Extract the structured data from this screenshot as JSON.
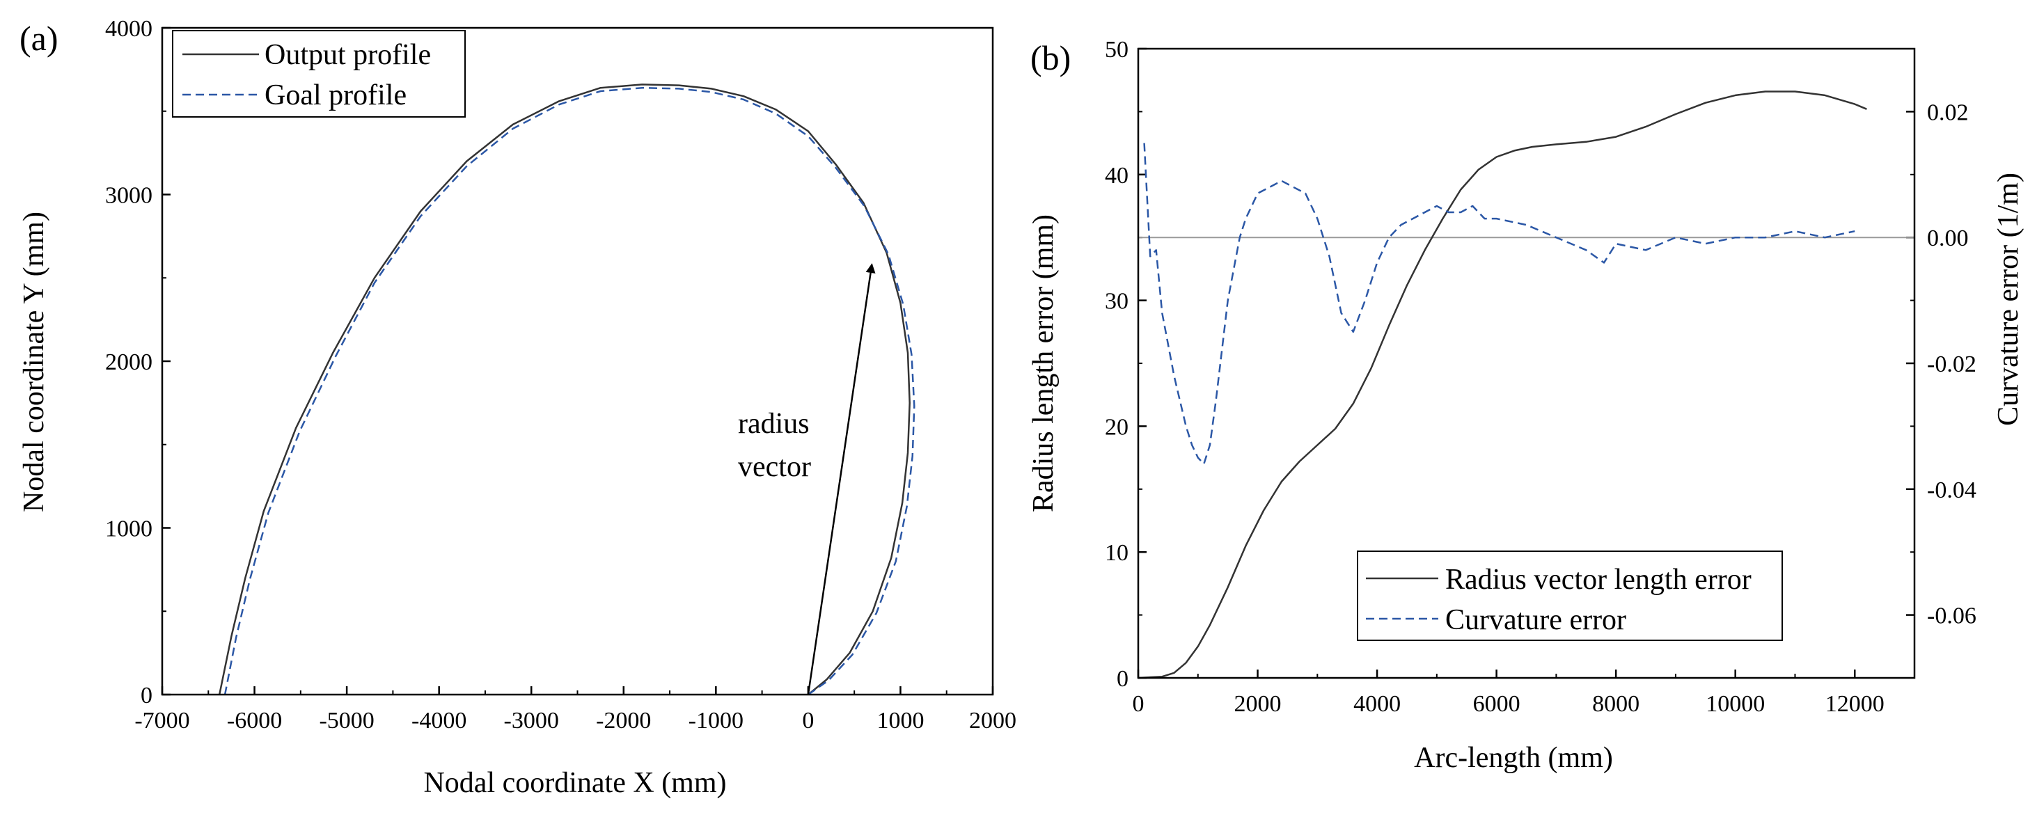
{
  "chart_data": [
    {
      "panel": "(a)",
      "type": "line",
      "xlabel": "Nodal coordinate  X (mm)",
      "ylabel": "Nodal coordinate  Y (mm)",
      "xlim": [
        -7000,
        2000
      ],
      "ylim": [
        0,
        4000
      ],
      "xticks": [
        "-7000",
        "-6000",
        "-5000",
        "-4000",
        "-3000",
        "-2000",
        "-1000",
        "0",
        "1000",
        "2000"
      ],
      "yticks": [
        "0",
        "1000",
        "2000",
        "3000",
        "4000"
      ],
      "legend_position": "top-left",
      "annotation": {
        "line1": "radius",
        "line2": "vector",
        "arrow_from": [
          0,
          0
        ],
        "arrow_to": [
          690,
          2580
        ]
      },
      "series": [
        {
          "name": "Output profile",
          "style": "solid",
          "color": "#333333",
          "x": [
            0,
            200,
            450,
            700,
            900,
            1020,
            1080,
            1100,
            1080,
            1000,
            850,
            600,
            300,
            0,
            -350,
            -700,
            -1050,
            -1400,
            -1800,
            -2250,
            -2700,
            -3200,
            -3700,
            -4200,
            -4700,
            -5150,
            -5550,
            -5900,
            -6100,
            -6250,
            -6380
          ],
          "y": [
            0,
            90,
            250,
            500,
            820,
            1150,
            1450,
            1750,
            2050,
            2350,
            2650,
            2950,
            3180,
            3380,
            3510,
            3590,
            3635,
            3655,
            3660,
            3640,
            3560,
            3420,
            3200,
            2900,
            2500,
            2050,
            1600,
            1100,
            700,
            350,
            0
          ]
        },
        {
          "name": "Goal profile",
          "style": "dashed",
          "color": "#2b57a6",
          "x": [
            0,
            220,
            480,
            740,
            950,
            1070,
            1130,
            1150,
            1120,
            1030,
            870,
            610,
            300,
            0,
            -350,
            -700,
            -1050,
            -1400,
            -1800,
            -2250,
            -2700,
            -3200,
            -3700,
            -4200,
            -4700,
            -5120,
            -5510,
            -5850,
            -6050,
            -6200,
            -6320
          ],
          "y": [
            0,
            85,
            240,
            490,
            800,
            1130,
            1430,
            1730,
            2040,
            2340,
            2640,
            2930,
            3160,
            3350,
            3485,
            3570,
            3615,
            3635,
            3640,
            3620,
            3540,
            3395,
            3170,
            2870,
            2470,
            2030,
            1580,
            1090,
            690,
            340,
            0
          ]
        }
      ]
    },
    {
      "panel": "(b)",
      "type": "line",
      "xlabel": "Arc-length (mm)",
      "ylabel": "Radius length error (mm)",
      "y2label": "Curvature error (1/m)",
      "xlim": [
        0,
        13000
      ],
      "ylim": [
        0,
        50
      ],
      "y2lim": [
        -0.07,
        0.03
      ],
      "xticks": [
        "0",
        "2000",
        "4000",
        "6000",
        "8000",
        "10000",
        "12000"
      ],
      "yticks": [
        "0",
        "10",
        "20",
        "30",
        "40",
        "50"
      ],
      "y2ticks": [
        "0.02",
        "0.00",
        "-0.02",
        "-0.04",
        "-0.06"
      ],
      "y2tick_values": [
        0.02,
        0.0,
        -0.02,
        -0.04,
        -0.06
      ],
      "legend_position": "bottom-center",
      "reference_line": {
        "axis": "y2",
        "value": 0.0
      },
      "series": [
        {
          "name": "Radius vector length error",
          "axis": "left",
          "style": "solid",
          "color": "#333333",
          "x": [
            0,
            400,
            600,
            800,
            1000,
            1200,
            1500,
            1800,
            2100,
            2400,
            2700,
            3000,
            3300,
            3600,
            3900,
            4200,
            4500,
            4800,
            5100,
            5400,
            5700,
            6000,
            6300,
            6600,
            7000,
            7500,
            8000,
            8500,
            9000,
            9500,
            10000,
            10500,
            11000,
            11500,
            12000,
            12200
          ],
          "y": [
            0,
            0.1,
            0.4,
            1.2,
            2.5,
            4.2,
            7.2,
            10.5,
            13.3,
            15.6,
            17.2,
            18.5,
            19.8,
            21.8,
            24.6,
            28.0,
            31.2,
            34.0,
            36.5,
            38.8,
            40.4,
            41.4,
            41.9,
            42.2,
            42.4,
            42.6,
            43.0,
            43.8,
            44.8,
            45.7,
            46.3,
            46.6,
            46.6,
            46.3,
            45.6,
            45.2
          ]
        },
        {
          "name": "Curvature error",
          "axis": "right",
          "style": "dashed",
          "color": "#2b57a6",
          "x": [
            100,
            200,
            300,
            400,
            500,
            600,
            700,
            800,
            900,
            1000,
            1100,
            1200,
            1300,
            1400,
            1500,
            1600,
            1700,
            1800,
            1900,
            2000,
            2200,
            2400,
            2600,
            2800,
            3000,
            3200,
            3400,
            3600,
            3800,
            4000,
            4200,
            4400,
            4600,
            4800,
            5000,
            5200,
            5400,
            5600,
            5800,
            6000,
            6500,
            7000,
            7500,
            7800,
            8000,
            8500,
            9000,
            9500,
            10000,
            10500,
            11000,
            11500,
            12000
          ],
          "y": [
            0.015,
            -0.003,
            -0.002,
            -0.012,
            -0.017,
            -0.022,
            -0.026,
            -0.03,
            -0.033,
            -0.035,
            -0.036,
            -0.033,
            -0.026,
            -0.018,
            -0.01,
            -0.005,
            0.0,
            0.003,
            0.005,
            0.007,
            0.008,
            0.009,
            0.008,
            0.007,
            0.003,
            -0.003,
            -0.012,
            -0.015,
            -0.01,
            -0.004,
            0.0,
            0.002,
            0.003,
            0.004,
            0.005,
            0.004,
            0.004,
            0.005,
            0.003,
            0.003,
            0.002,
            0.0,
            -0.002,
            -0.004,
            -0.001,
            -0.002,
            0.0,
            -0.001,
            0.0,
            0.0,
            0.001,
            0.0,
            0.001
          ]
        }
      ]
    }
  ]
}
